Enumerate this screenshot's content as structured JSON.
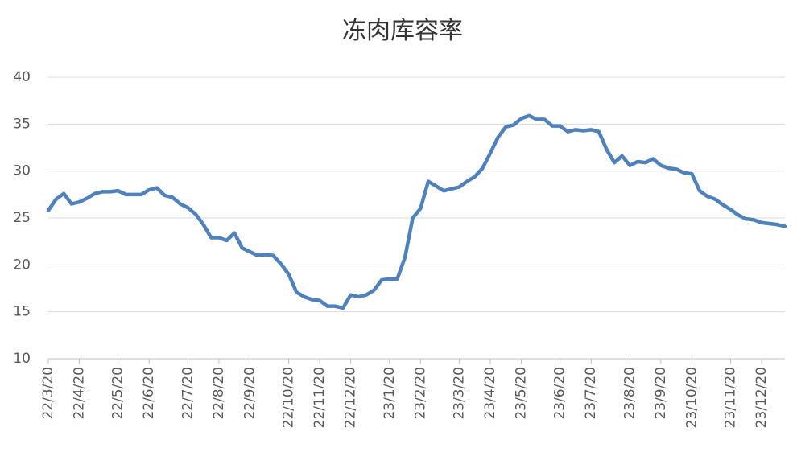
{
  "chart_data": {
    "type": "line",
    "title": "冻肉库容率",
    "categories": [
      "22/3/20",
      null,
      null,
      null,
      "22/4/20",
      null,
      null,
      null,
      null,
      "22/5/20",
      null,
      null,
      null,
      "22/6/20",
      null,
      null,
      null,
      null,
      "22/7/20",
      null,
      null,
      null,
      "22/8/20",
      null,
      null,
      null,
      "22/9/20",
      null,
      null,
      null,
      null,
      "22/10/20",
      null,
      null,
      null,
      "22/11/20",
      null,
      null,
      null,
      "22/12/20",
      null,
      null,
      null,
      null,
      "23/1/20",
      null,
      null,
      null,
      "23/2/20",
      null,
      null,
      null,
      null,
      "23/3/20",
      null,
      null,
      null,
      "23/4/20",
      null,
      null,
      null,
      "23/5/20",
      null,
      null,
      null,
      null,
      "23/6/20",
      null,
      null,
      null,
      "23/7/20",
      null,
      null,
      null,
      null,
      "23/8/20",
      null,
      null,
      null,
      "23/9/20",
      null,
      null,
      null,
      "23/10/20",
      null,
      null,
      null,
      null,
      "23/11/20",
      null,
      null,
      null,
      "23/12/20",
      null,
      null,
      null
    ],
    "series": [
      {
        "color": "#4f81bd",
        "values": [
          25.8,
          27,
          27.6,
          26.5,
          26.7,
          27.1,
          27.6,
          27.8,
          27.8,
          27.9,
          27.5,
          27.5,
          27.5,
          28,
          28.2,
          27.4,
          27.2,
          26.5,
          26.1,
          25.4,
          24.3,
          22.9,
          22.9,
          22.6,
          23.4,
          21.8,
          21.4,
          21.0,
          21.1,
          21.0,
          20.1,
          19.0,
          17.1,
          16.6,
          16.3,
          16.2,
          15.6,
          15.6,
          15.4,
          16.8,
          16.6,
          16.8,
          17.3,
          18.4,
          18.5,
          18.5,
          20.8,
          25.0,
          26.0,
          28.9,
          28.4,
          27.9,
          28.1,
          28.3,
          28.9,
          29.4,
          30.3,
          31.9,
          33.6,
          34.7,
          34.9,
          35.6,
          35.9,
          35.5,
          35.5,
          34.8,
          34.8,
          34.2,
          34.4,
          34.3,
          34.4,
          34.2,
          32.3,
          30.9,
          31.6,
          30.6,
          31,
          30.9,
          31.3,
          30.6,
          30.3,
          30.2,
          29.8,
          29.7,
          27.9,
          27.3,
          27.0,
          26.4,
          25.9,
          25.3,
          24.9,
          24.8,
          24.5,
          24.4,
          24.3,
          24.1
        ]
      }
    ],
    "ylim": [
      10,
      40
    ],
    "yticks": [
      10,
      15,
      20,
      25,
      30,
      35,
      40
    ],
    "grid": true
  }
}
